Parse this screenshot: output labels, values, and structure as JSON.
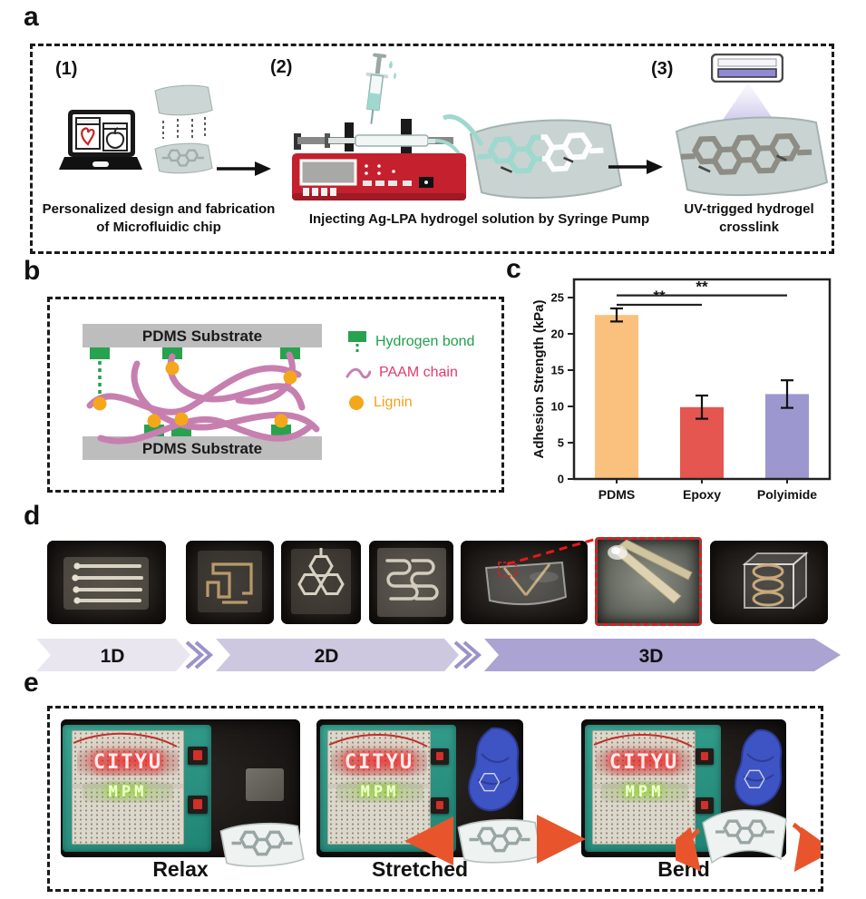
{
  "panels": {
    "a": {
      "label": "a",
      "steps": [
        {
          "number": "(1)",
          "caption": "Personalized design and fabrication of Microfluidic chip"
        },
        {
          "number": "(2)",
          "caption": "Injecting Ag-LPA hydrogel solution by Syringe Pump"
        },
        {
          "number": "(3)",
          "caption": "UV-trigged hydrogel crosslink"
        }
      ],
      "colors": {
        "pump_red": "#c4202e",
        "hydrogel_teal": "#9fd8cf",
        "uv_purple": "#9089d4"
      }
    },
    "b": {
      "label": "b",
      "substrate_top": "PDMS Substrate",
      "substrate_bottom": "PDMS Substrate",
      "legend": [
        {
          "label": "Hydrogen bond",
          "color": "#1fa14b",
          "swatch": "#27a24e"
        },
        {
          "label": "PAAM chain",
          "color": "#e23a6d",
          "swatch": "#c77fb0"
        },
        {
          "label": "Lignin",
          "color": "#f0a01e",
          "swatch": "#f4a71b"
        }
      ],
      "substrate_color": "#bdbdbd"
    },
    "c": {
      "label": "c"
    },
    "d": {
      "label": "d",
      "highlight_color": "#e31a1a",
      "stages": [
        {
          "label": "1D",
          "color": "#e9e6f0"
        },
        {
          "label": "2D",
          "color": "#cdc8df"
        },
        {
          "label": "3D",
          "color": "#aba3d2"
        }
      ]
    },
    "e": {
      "label": "e",
      "led_top": {
        "text": "CITYU",
        "color": "#ffecec"
      },
      "led_bottom": {
        "text": "MPM",
        "color": "#f4ffda"
      },
      "states": [
        {
          "label": "Relax"
        },
        {
          "label": "Stretched"
        },
        {
          "label": "Bend"
        }
      ],
      "arrow_color": "#e8552c"
    }
  },
  "chart_data": {
    "type": "bar",
    "categories": [
      "PDMS",
      "Epoxy",
      "Polyimide"
    ],
    "values": [
      22.6,
      9.9,
      11.7
    ],
    "errors": [
      0.9,
      1.6,
      1.9
    ],
    "bar_colors": [
      "#fac17e",
      "#e4564f",
      "#9c98cf"
    ],
    "ylabel": "Adhesion Strength (kPa)",
    "xlabel": "",
    "yticks": [
      0,
      5,
      10,
      15,
      20,
      25
    ],
    "ylim": [
      0,
      27.5
    ],
    "grid": false,
    "legend_position": "none",
    "significance": [
      {
        "from": "PDMS",
        "to": "Epoxy",
        "label": "**",
        "y": 24.0
      },
      {
        "from": "PDMS",
        "to": "Polyimide",
        "label": "**",
        "y": 25.3
      }
    ]
  }
}
